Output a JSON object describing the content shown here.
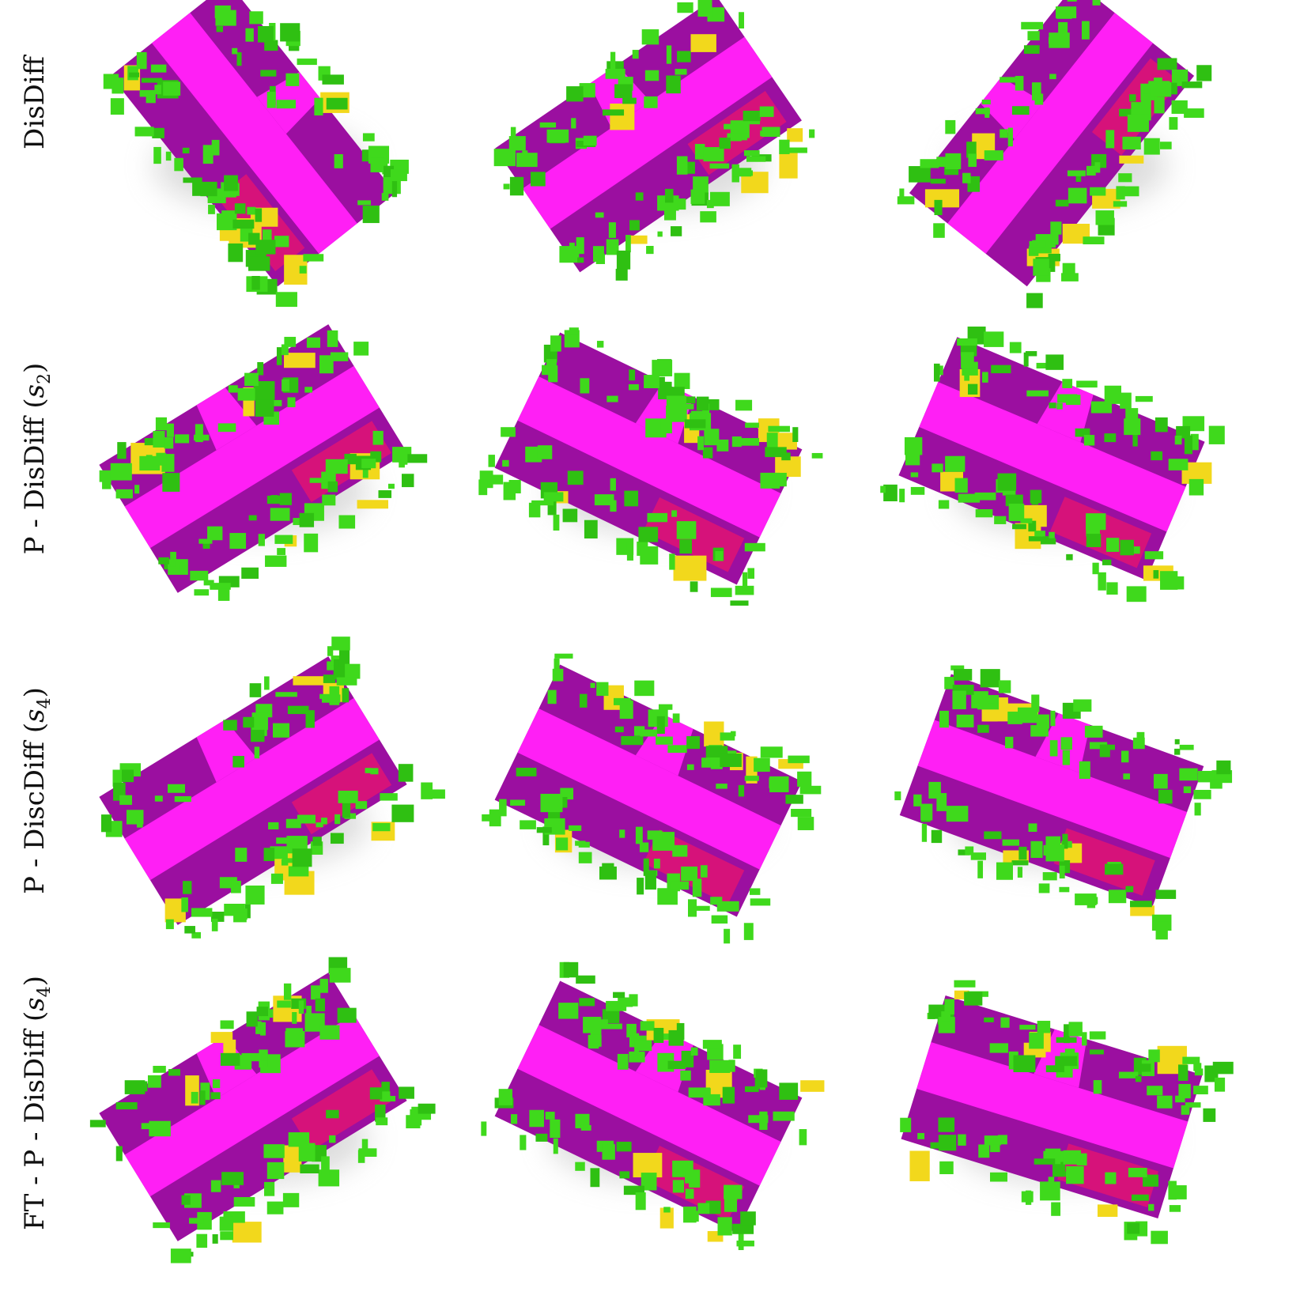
{
  "figure": {
    "rows": [
      {
        "prefix": "DisDiff"
      },
      {
        "prefix": "P - DisDiff (",
        "symbol": "s",
        "subscript": "2",
        "suffix": ")"
      },
      {
        "prefix": "P - DiscDiff (",
        "symbol": "s",
        "subscript": "4",
        "suffix": ")"
      },
      {
        "prefix": "FT - P - DisDiff (",
        "symbol": "s",
        "subscript": "4",
        "suffix": ")"
      }
    ]
  }
}
